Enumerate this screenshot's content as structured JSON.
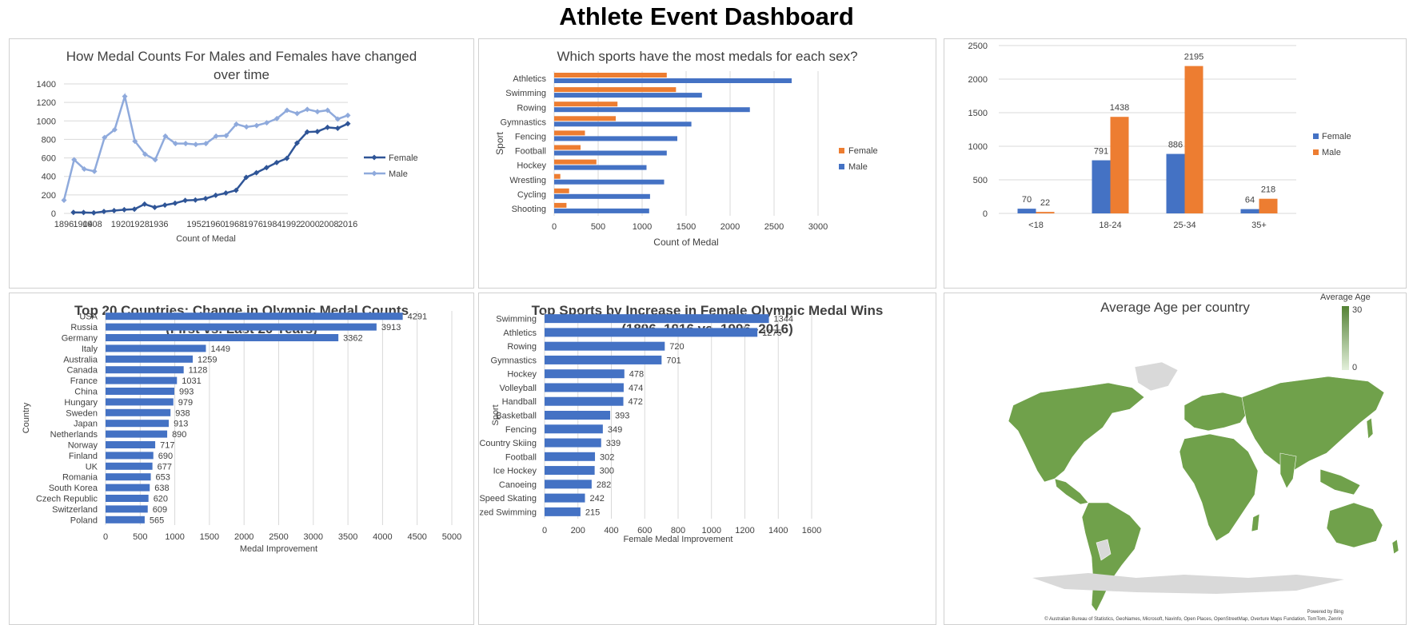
{
  "page": {
    "title": "Athlete Event Dashboard"
  },
  "colors": {
    "female_line": "#2f5597",
    "male_line": "#8faadc",
    "blue": "#4472c4",
    "orange": "#ed7d31",
    "grid": "#d9d9d9",
    "map_fill": "#70a14b",
    "map_missing": "#d9d9d9"
  },
  "panels": {
    "p1": {
      "title": "How Medal Counts For Males and Females have changed over time"
    },
    "p2": {
      "title": "Which sports have the most medals for each sex?"
    },
    "p4": {
      "title": "Top 20 Countries: Change in Olympic Medal Counts (First vs. Last 20 Years)"
    },
    "p5": {
      "title": "Top Sports by Increase in Female Olympic Medal Wins (1896–1916 vs. 1996–2016)"
    },
    "p6": {
      "title": "Average Age per country",
      "legend_title": "Average Age",
      "legend_max": "30",
      "legend_min": "0",
      "powered_by": "Powered by Bing",
      "attribution": "© Australian Bureau of Statistics, GeoNames, Microsoft, Navinfo, Open Places, OpenStreetMap, Overture Maps Fundation, TomTom, Zenrin"
    }
  },
  "chart_data": [
    {
      "id": "p1",
      "type": "line",
      "title": "How Medal Counts For Males and Females have changed over time",
      "xlabel": "Count of Medal",
      "ylabel": "",
      "ylim": [
        0,
        1400
      ],
      "yticks": [
        0,
        200,
        400,
        600,
        800,
        1000,
        1200,
        1400
      ],
      "x": [
        1896,
        1900,
        1904,
        1906,
        1908,
        1912,
        1920,
        1924,
        1928,
        1932,
        1936,
        1948,
        1952,
        1956,
        1960,
        1964,
        1968,
        1972,
        1976,
        1980,
        1984,
        1988,
        1992,
        1994,
        1996,
        1998,
        2000,
        2002,
        2004,
        2006,
        2008,
        2010,
        2012,
        2014,
        2016
      ],
      "x_tick_labels": [
        "1896",
        "1904",
        "1908",
        "1920",
        "1928",
        "1936",
        "1952",
        "1960",
        "1968",
        "1976",
        "1984",
        "1992",
        "2000",
        "2008",
        "2016"
      ],
      "series": [
        {
          "name": "Female",
          "values": [
            null,
            null,
            null,
            null,
            null,
            null,
            null,
            null,
            null,
            null,
            null,
            null,
            null,
            null,
            null,
            null,
            null,
            null,
            null,
            null,
            null,
            null,
            null,
            null,
            null,
            null,
            null,
            null,
            null,
            null,
            null,
            null,
            null,
            null,
            null
          ],
          "points": [
            [
              1900,
              11
            ],
            [
              1904,
              10
            ],
            [
              1906,
              6
            ],
            [
              1908,
              20
            ],
            [
              1912,
              30
            ],
            [
              1920,
              40
            ],
            [
              1924,
              45
            ],
            [
              1928,
              100
            ],
            [
              1932,
              65
            ],
            [
              1936,
              90
            ],
            [
              1948,
              110
            ],
            [
              1952,
              140
            ],
            [
              1956,
              145
            ],
            [
              1960,
              160
            ],
            [
              1964,
              195
            ],
            [
              1968,
              220
            ],
            [
              1972,
              250
            ],
            [
              1976,
              390
            ],
            [
              1980,
              440
            ],
            [
              1984,
              495
            ],
            [
              1988,
              550
            ],
            [
              1992,
              595
            ],
            [
              1994,
              760
            ],
            [
              1996,
              880
            ],
            [
              1998,
              885
            ],
            [
              2000,
              930
            ],
            [
              2002,
              920
            ],
            [
              2004,
              970
            ]
          ]
        },
        {
          "name": "Male",
          "points": [
            [
              1896,
              143
            ],
            [
              1900,
              580
            ],
            [
              1904,
              480
            ],
            [
              1906,
              455
            ],
            [
              1908,
              820
            ],
            [
              1912,
              905
            ],
            [
              1920,
              1265
            ],
            [
              1924,
              780
            ],
            [
              1928,
              640
            ],
            [
              1932,
              580
            ],
            [
              1936,
              835
            ],
            [
              1948,
              755
            ],
            [
              1952,
              755
            ],
            [
              1956,
              745
            ],
            [
              1960,
              755
            ],
            [
              1964,
              835
            ],
            [
              1968,
              840
            ],
            [
              1972,
              965
            ],
            [
              1976,
              935
            ],
            [
              1980,
              950
            ],
            [
              1984,
              980
            ],
            [
              1988,
              1025
            ],
            [
              1992,
              1115
            ],
            [
              1994,
              1080
            ],
            [
              1996,
              1125
            ],
            [
              1998,
              1100
            ],
            [
              2000,
              1115
            ],
            [
              2002,
              1020
            ],
            [
              2004,
              1060
            ]
          ]
        }
      ]
    },
    {
      "id": "p2",
      "type": "bar",
      "orientation": "horizontal",
      "title": "Which sports have the most medals for each sex?",
      "xlabel": "Count of Medal",
      "ylabel": "Sport",
      "xlim": [
        0,
        3000
      ],
      "xticks": [
        0,
        500,
        1000,
        1500,
        2000,
        2500,
        3000
      ],
      "categories": [
        "Athletics",
        "Swimming",
        "Rowing",
        "Gymnastics",
        "Fencing",
        "Football",
        "Hockey",
        "Wrestling",
        "Cycling",
        "Shooting"
      ],
      "series": [
        {
          "name": "Female",
          "values": [
            1280,
            1385,
            720,
            700,
            350,
            300,
            480,
            70,
            170,
            140
          ]
        },
        {
          "name": "Male",
          "values": [
            2700,
            1680,
            2225,
            1560,
            1400,
            1280,
            1050,
            1250,
            1090,
            1080
          ]
        }
      ]
    },
    {
      "id": "p3",
      "type": "bar",
      "title": "",
      "xlabel": "",
      "ylabel": "",
      "ylim": [
        0,
        2500
      ],
      "yticks": [
        0,
        500,
        1000,
        1500,
        2000,
        2500
      ],
      "categories": [
        "<18",
        "18-24",
        "25-34",
        "35+"
      ],
      "series": [
        {
          "name": "Female",
          "values": [
            70,
            791,
            886,
            64
          ]
        },
        {
          "name": "Male",
          "values": [
            22,
            1438,
            2195,
            218
          ]
        }
      ]
    },
    {
      "id": "p4",
      "type": "bar",
      "orientation": "horizontal",
      "title": "Top 20 Countries: Change in Olympic Medal Counts (First vs. Last 20 Years)",
      "xlabel": "Medal Improvement",
      "ylabel": "Country",
      "xlim": [
        0,
        5000
      ],
      "xticks": [
        0,
        500,
        1000,
        1500,
        2000,
        2500,
        3000,
        3500,
        4000,
        4500,
        5000
      ],
      "categories": [
        "USA",
        "Russia",
        "Germany",
        "Italy",
        "Australia",
        "Canada",
        "France",
        "China",
        "Hungary",
        "Sweden",
        "Japan",
        "Netherlands",
        "Norway",
        "Finland",
        "UK",
        "Romania",
        "South Korea",
        "Czech Republic",
        "Switzerland",
        "Poland"
      ],
      "values": [
        4291,
        3913,
        3362,
        1449,
        1259,
        1128,
        1031,
        993,
        979,
        938,
        913,
        890,
        717,
        690,
        677,
        653,
        638,
        620,
        609,
        565
      ]
    },
    {
      "id": "p5",
      "type": "bar",
      "orientation": "horizontal",
      "title": "Top Sports by Increase in Female Olympic Medal Wins (1896–1916 vs. 1996–2016)",
      "xlabel": "Female Medal Improvement",
      "ylabel": "Sport",
      "xlim": [
        0,
        1600
      ],
      "xticks": [
        0,
        200,
        400,
        600,
        800,
        1000,
        1200,
        1400,
        1600
      ],
      "categories": [
        "Swimming",
        "Athletics",
        "Rowing",
        "Gymnastics",
        "Hockey",
        "Volleyball",
        "Handball",
        "Basketball",
        "Fencing",
        "Cross Country Skiing",
        "Football",
        "Ice Hockey",
        "Canoeing",
        "Speed Skating",
        "Synchronized Swimming"
      ],
      "values": [
        1344,
        1275,
        720,
        701,
        478,
        474,
        472,
        393,
        349,
        339,
        302,
        300,
        282,
        242,
        215
      ]
    }
  ]
}
